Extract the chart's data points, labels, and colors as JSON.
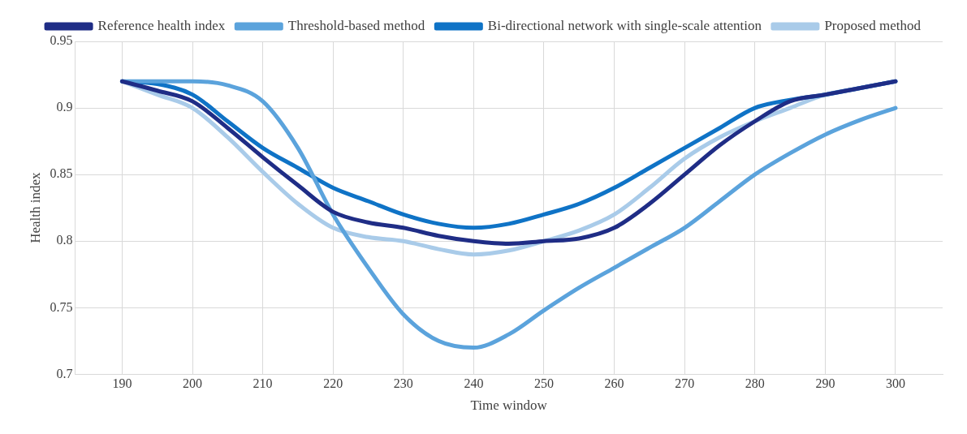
{
  "chart_data": {
    "type": "line",
    "xlabel": "Time window",
    "ylabel": "Health index",
    "x": [
      190,
      195,
      200,
      205,
      210,
      215,
      220,
      225,
      230,
      235,
      240,
      245,
      250,
      255,
      260,
      265,
      270,
      275,
      280,
      285,
      290,
      295,
      300
    ],
    "xlim": [
      183.3,
      306.7
    ],
    "xticks": [
      190,
      200,
      210,
      220,
      230,
      240,
      250,
      260,
      270,
      280,
      290,
      300
    ],
    "ylim": [
      0.7,
      0.95
    ],
    "yticks": [
      0.7,
      0.75,
      0.8,
      0.85,
      0.9,
      0.95
    ],
    "grid": true,
    "legend": "top",
    "marker": "none",
    "line_style": "solid",
    "series": [
      {
        "name": "Reference health index",
        "color": "#1f2d86",
        "values": [
          0.92,
          0.913,
          0.905,
          0.885,
          0.863,
          0.842,
          0.822,
          0.814,
          0.81,
          0.804,
          0.8,
          0.798,
          0.8,
          0.802,
          0.81,
          0.828,
          0.85,
          0.872,
          0.89,
          0.905,
          0.91,
          0.915,
          0.92
        ]
      },
      {
        "name": "Threshold-based method",
        "color": "#5ba3dc",
        "values": [
          0.92,
          0.92,
          0.92,
          0.917,
          0.905,
          0.87,
          0.82,
          0.78,
          0.745,
          0.725,
          0.72,
          0.73,
          0.748,
          0.765,
          0.78,
          0.795,
          0.81,
          0.83,
          0.85,
          0.866,
          0.88,
          0.891,
          0.9
        ]
      },
      {
        "name": "Bi-directional network with single-scale attention",
        "color": "#0f73c6",
        "values": [
          0.92,
          0.918,
          0.91,
          0.89,
          0.87,
          0.855,
          0.84,
          0.83,
          0.82,
          0.813,
          0.81,
          0.813,
          0.82,
          0.828,
          0.84,
          0.855,
          0.87,
          0.885,
          0.9,
          0.906,
          0.91,
          0.915,
          0.92
        ]
      },
      {
        "name": "Proposed method",
        "color": "#a9cbe9",
        "values": [
          0.92,
          0.91,
          0.9,
          0.878,
          0.852,
          0.828,
          0.81,
          0.803,
          0.8,
          0.794,
          0.79,
          0.793,
          0.8,
          0.808,
          0.82,
          0.84,
          0.862,
          0.878,
          0.89,
          0.9,
          0.91,
          0.915,
          0.92
        ]
      }
    ]
  }
}
